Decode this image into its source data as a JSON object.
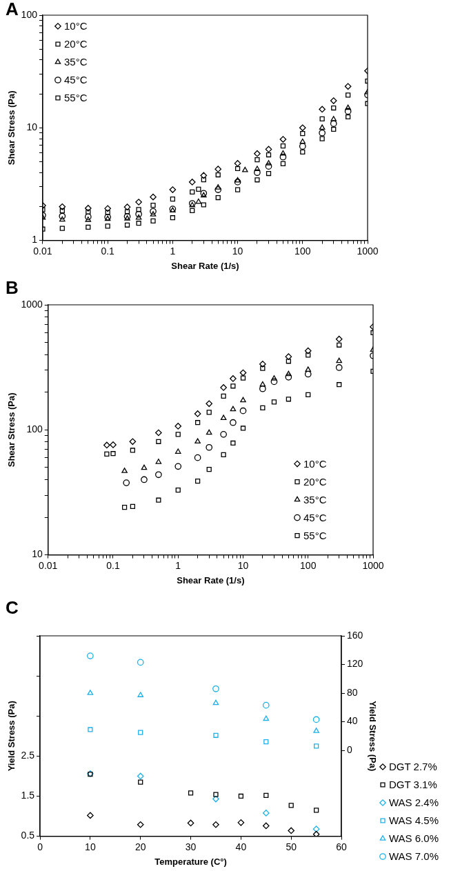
{
  "chart_data": [
    {
      "type": "scatter",
      "title": "A",
      "xlabel": "Shear Rate (1/s)",
      "ylabel": "Shear Stress (Pa)",
      "log": "xy",
      "xlim": [
        0.01,
        1000
      ],
      "ylim": [
        1,
        100
      ],
      "xticks": [
        0.01,
        {
          "value": 0.02,
          "label": null
        },
        {
          "value": 0.03,
          "label": null
        },
        {
          "value": 0.04,
          "label": null
        },
        {
          "value": 0.05,
          "label": null
        },
        {
          "value": 0.06,
          "label": null
        },
        {
          "value": 0.07,
          "label": null
        },
        {
          "value": 0.08,
          "label": null
        },
        {
          "value": 0.09,
          "label": null
        },
        0.1,
        {
          "value": 0.2,
          "label": null
        },
        {
          "value": 0.3,
          "label": null
        },
        {
          "value": 0.4,
          "label": null
        },
        {
          "value": 0.5,
          "label": null
        },
        {
          "value": 0.6,
          "label": null
        },
        {
          "value": 0.7,
          "label": null
        },
        {
          "value": 0.8,
          "label": null
        },
        {
          "value": 0.9,
          "label": null
        },
        1,
        {
          "value": 2,
          "label": null
        },
        {
          "value": 3,
          "label": null
        },
        {
          "value": 4,
          "label": null
        },
        {
          "value": 5,
          "label": null
        },
        {
          "value": 6,
          "label": null
        },
        {
          "value": 7,
          "label": null
        },
        {
          "value": 8,
          "label": null
        },
        {
          "value": 9,
          "label": null
        },
        10,
        {
          "value": 20,
          "label": null
        },
        {
          "value": 30,
          "label": null
        },
        {
          "value": 40,
          "label": null
        },
        {
          "value": 50,
          "label": null
        },
        {
          "value": 60,
          "label": null
        },
        {
          "value": 70,
          "label": null
        },
        {
          "value": 80,
          "label": null
        },
        {
          "value": 90,
          "label": null
        },
        100,
        {
          "value": 200,
          "label": null
        },
        {
          "value": 300,
          "label": null
        },
        {
          "value": 400,
          "label": null
        },
        {
          "value": 500,
          "label": null
        },
        {
          "value": 600,
          "label": null
        },
        {
          "value": 700,
          "label": null
        },
        {
          "value": 800,
          "label": null
        },
        {
          "value": 900,
          "label": null
        },
        1000
      ],
      "yticks": [
        1,
        {
          "value": 2,
          "label": null
        },
        {
          "value": 3,
          "label": null
        },
        {
          "value": 4,
          "label": null
        },
        {
          "value": 5,
          "label": null
        },
        {
          "value": 6,
          "label": null
        },
        {
          "value": 7,
          "label": null
        },
        {
          "value": 8,
          "label": null
        },
        {
          "value": 9,
          "label": null
        },
        10,
        {
          "value": 20,
          "label": null
        },
        {
          "value": 30,
          "label": null
        },
        {
          "value": 40,
          "label": null
        },
        {
          "value": 50,
          "label": null
        },
        {
          "value": 60,
          "label": null
        },
        {
          "value": 70,
          "label": null
        },
        {
          "value": 80,
          "label": null
        },
        {
          "value": 90,
          "label": null
        },
        100
      ],
      "legend": "top left",
      "series": [
        {
          "name": "10°C",
          "color": "#000000",
          "marker": "diamond",
          "x": [
            0.01,
            0.02,
            0.05,
            0.1,
            0.2,
            0.3,
            0.5,
            1,
            2,
            3,
            5,
            10,
            20,
            30,
            50,
            100,
            200,
            300,
            500,
            1000
          ],
          "values": [
            2.04,
            1.99,
            1.93,
            1.92,
            1.98,
            2.19,
            2.43,
            2.82,
            3.3,
            3.77,
            4.3,
            4.83,
            5.9,
            6.45,
            7.9,
            10,
            14.6,
            17.4,
            23.3,
            32
          ]
        },
        {
          "name": "20°C",
          "color": "#000000",
          "marker": "square",
          "x": [
            0.01,
            0.02,
            0.05,
            0.1,
            0.2,
            0.3,
            0.5,
            1,
            2,
            2.5,
            3,
            5,
            10,
            20,
            30,
            50,
            100,
            200,
            300,
            500,
            1000
          ],
          "values": [
            1.88,
            1.83,
            1.79,
            1.77,
            1.8,
            1.88,
            2.05,
            2.33,
            2.69,
            2.85,
            3.46,
            3.82,
            4.34,
            5.2,
            5.75,
            6.9,
            8.9,
            12,
            15,
            19.5,
            26
          ]
        },
        {
          "name": "35°C",
          "color": "#000000",
          "marker": "triangle",
          "x": [
            0.01,
            0.02,
            0.05,
            0.1,
            0.2,
            0.3,
            0.5,
            1,
            2,
            2.5,
            3,
            5,
            10,
            13,
            20,
            30,
            50,
            100,
            200,
            300,
            500,
            1000
          ],
          "values": [
            1.59,
            1.53,
            1.52,
            1.55,
            1.56,
            1.59,
            1.7,
            1.84,
            2.05,
            2.2,
            2.5,
            2.94,
            3.4,
            4.2,
            4.3,
            4.83,
            5.9,
            7.5,
            10,
            11.9,
            15,
            20.7
          ]
        },
        {
          "name": "45°C",
          "color": "#000000",
          "marker": "circle",
          "x": [
            0.01,
            0.02,
            0.05,
            0.1,
            0.2,
            0.3,
            0.5,
            1,
            2,
            3,
            5,
            10,
            20,
            30,
            50,
            100,
            200,
            300,
            500,
            1000
          ],
          "values": [
            1.67,
            1.64,
            1.62,
            1.61,
            1.63,
            1.71,
            1.81,
            1.9,
            2.13,
            2.62,
            2.82,
            3.3,
            4,
            4.55,
            5.5,
            6.85,
            9,
            10.9,
            14,
            19.6
          ]
        },
        {
          "name": "55°C",
          "color": "#000000",
          "marker": "square",
          "x": [
            0.01,
            0.02,
            0.05,
            0.1,
            0.2,
            0.3,
            0.5,
            1,
            2,
            3,
            5,
            10,
            20,
            30,
            50,
            100,
            200,
            300,
            500,
            1000
          ],
          "values": [
            1.26,
            1.28,
            1.31,
            1.34,
            1.37,
            1.42,
            1.49,
            1.59,
            1.84,
            2.07,
            2.4,
            2.82,
            3.45,
            3.93,
            4.8,
            6.1,
            8,
            9.7,
            12.5,
            16.4
          ]
        }
      ]
    },
    {
      "type": "scatter",
      "title": "B",
      "xlabel": "Shear Rate (1/s)",
      "ylabel": "Shear Stress (Pa)",
      "log": "xy",
      "xlim": [
        0.01,
        1000
      ],
      "ylim": [
        10,
        1000
      ],
      "xticks": [
        0.01,
        {
          "value": 0.02,
          "label": null
        },
        {
          "value": 0.03,
          "label": null
        },
        {
          "value": 0.04,
          "label": null
        },
        {
          "value": 0.05,
          "label": null
        },
        {
          "value": 0.06,
          "label": null
        },
        {
          "value": 0.07,
          "label": null
        },
        {
          "value": 0.08,
          "label": null
        },
        {
          "value": 0.09,
          "label": null
        },
        0.1,
        {
          "value": 0.2,
          "label": null
        },
        {
          "value": 0.3,
          "label": null
        },
        {
          "value": 0.4,
          "label": null
        },
        {
          "value": 0.5,
          "label": null
        },
        {
          "value": 0.6,
          "label": null
        },
        {
          "value": 0.7,
          "label": null
        },
        {
          "value": 0.8,
          "label": null
        },
        {
          "value": 0.9,
          "label": null
        },
        1,
        {
          "value": 2,
          "label": null
        },
        {
          "value": 3,
          "label": null
        },
        {
          "value": 4,
          "label": null
        },
        {
          "value": 5,
          "label": null
        },
        {
          "value": 6,
          "label": null
        },
        {
          "value": 7,
          "label": null
        },
        {
          "value": 8,
          "label": null
        },
        {
          "value": 9,
          "label": null
        },
        10,
        {
          "value": 20,
          "label": null
        },
        {
          "value": 30,
          "label": null
        },
        {
          "value": 40,
          "label": null
        },
        {
          "value": 50,
          "label": null
        },
        {
          "value": 60,
          "label": null
        },
        {
          "value": 70,
          "label": null
        },
        {
          "value": 80,
          "label": null
        },
        {
          "value": 90,
          "label": null
        },
        100,
        {
          "value": 200,
          "label": null
        },
        {
          "value": 300,
          "label": null
        },
        {
          "value": 400,
          "label": null
        },
        {
          "value": 500,
          "label": null
        },
        {
          "value": 600,
          "label": null
        },
        {
          "value": 700,
          "label": null
        },
        {
          "value": 800,
          "label": null
        },
        {
          "value": 900,
          "label": null
        },
        1000
      ],
      "yticks": [
        10,
        {
          "value": 20,
          "label": null
        },
        {
          "value": 30,
          "label": null
        },
        {
          "value": 40,
          "label": null
        },
        {
          "value": 50,
          "label": null
        },
        {
          "value": 60,
          "label": null
        },
        {
          "value": 70,
          "label": null
        },
        {
          "value": 80,
          "label": null
        },
        {
          "value": 90,
          "label": null
        },
        100,
        {
          "value": 200,
          "label": null
        },
        {
          "value": 300,
          "label": null
        },
        {
          "value": 400,
          "label": null
        },
        {
          "value": 500,
          "label": null
        },
        {
          "value": 600,
          "label": null
        },
        {
          "value": 700,
          "label": null
        },
        {
          "value": 800,
          "label": null
        },
        {
          "value": 900,
          "label": null
        },
        1000
      ],
      "legend": "bottom right",
      "series": [
        {
          "name": "10°C",
          "color": "#000000",
          "marker": "diamond",
          "x": [
            0.08,
            0.1,
            0.2,
            0.5,
            1,
            2,
            3,
            5,
            7,
            10,
            20,
            50,
            100,
            300,
            1000
          ],
          "values": [
            75.5,
            76,
            80.6,
            94.8,
            107,
            134.5,
            162,
            218,
            257,
            286,
            336,
            385,
            429,
            532,
            667
          ]
        },
        {
          "name": "20°C",
          "color": "#000000",
          "marker": "square",
          "x": [
            0.08,
            0.1,
            0.2,
            0.5,
            1,
            2,
            3,
            5,
            7,
            10,
            20,
            50,
            100,
            300,
            1000
          ],
          "values": [
            64,
            64.6,
            68.6,
            80.6,
            92,
            114.4,
            138,
            186,
            224,
            260,
            310,
            354,
            396,
            477,
            598
          ]
        },
        {
          "name": "35°C",
          "color": "#000000",
          "marker": "triangle",
          "x": [
            0.15,
            0.3,
            0.5,
            1,
            2,
            3,
            5,
            7,
            10,
            20,
            30,
            50,
            100,
            300,
            1000
          ],
          "values": [
            46.8,
            49.6,
            55.3,
            66.7,
            80.6,
            94.8,
            124,
            146,
            172,
            230,
            257,
            279,
            302,
            355,
            436
          ]
        },
        {
          "name": "45°C",
          "color": "#000000",
          "marker": "circle",
          "x": [
            0.16,
            0.3,
            0.5,
            1,
            2,
            3,
            5,
            7,
            10,
            20,
            30,
            50,
            100,
            300,
            1000
          ],
          "values": [
            37.7,
            40,
            43.8,
            51,
            59.9,
            72.4,
            92,
            114.4,
            142,
            213,
            243,
            264,
            279,
            315,
            392
          ]
        },
        {
          "name": "55°C",
          "color": "#000000",
          "marker": "square",
          "x": [
            0.15,
            0.2,
            0.5,
            1,
            2,
            3,
            5,
            7,
            10,
            20,
            30,
            50,
            100,
            300,
            1000
          ],
          "values": [
            24,
            24.4,
            27.4,
            33,
            38.9,
            48.3,
            63.2,
            78.4,
            103,
            150,
            167,
            176,
            191,
            230,
            294
          ]
        }
      ]
    },
    {
      "type": "scatter",
      "title": "C",
      "xlabel": "Temperature (C°)",
      "ylabel": "Yield Stress (Pa)",
      "y2label": "Yield Stress (Pa)",
      "xlim": [
        0,
        60
      ],
      "xticks": [
        0,
        10,
        20,
        30,
        40,
        50,
        60
      ],
      "ylim": [
        0.5,
        5.5
      ],
      "yticks": [
        0.5,
        1.5,
        2.5,
        {
          "value": 3.5,
          "label": null
        },
        {
          "value": 4.5,
          "label": null
        },
        {
          "value": 5.5,
          "label": null
        }
      ],
      "y2lim": [
        -120,
        160
      ],
      "y2ticks": [
        0,
        40,
        80,
        120,
        160
      ],
      "legend": "right",
      "series": [
        {
          "name": "DGT 2.7%",
          "color": "#000000",
          "marker": "diamond",
          "x": [
            10,
            20,
            30,
            35,
            40,
            45,
            50,
            55
          ],
          "values": [
            1.02,
            0.79,
            0.83,
            0.79,
            0.84,
            0.76,
            0.64,
            0.55
          ]
        },
        {
          "name": "DGT 3.1%",
          "color": "#000000",
          "marker": "square",
          "x": [
            10,
            20,
            30,
            35,
            40,
            45,
            50,
            55
          ],
          "values": [
            2.05,
            1.85,
            1.58,
            1.54,
            1.5,
            1.52,
            1.27,
            1.15
          ]
        },
        {
          "name": "WAS 2.4%",
          "color": "#1bb1e7",
          "marker": "diamond",
          "x": [
            10,
            20,
            35,
            45,
            55
          ],
          "values": [
            2.06,
            2,
            1.43,
            1.08,
            0.68
          ]
        },
        {
          "name": "WAS 4.5%",
          "color": "#1bb1e7",
          "marker": "square",
          "axis": "y2",
          "x": [
            10,
            20,
            35,
            45,
            55
          ],
          "values": [
            29,
            25,
            21,
            12,
            6
          ]
        },
        {
          "name": "WAS 6.0%",
          "color": "#1bb1e7",
          "marker": "triangle",
          "axis": "y2",
          "x": [
            10,
            20,
            35,
            45,
            55
          ],
          "values": [
            80,
            77,
            66,
            44,
            27
          ]
        },
        {
          "name": "WAS 7.0%",
          "color": "#1bb1e7",
          "marker": "circle",
          "axis": "y2",
          "x": [
            10,
            20,
            35,
            45,
            55
          ],
          "values": [
            132,
            123,
            86,
            63,
            43
          ]
        }
      ]
    }
  ]
}
